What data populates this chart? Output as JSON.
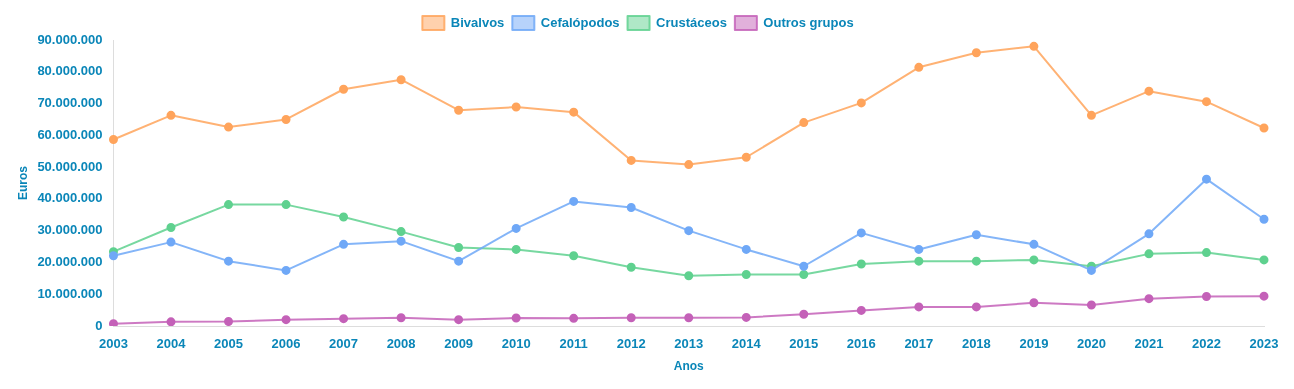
{
  "chart_data": {
    "type": "line",
    "xlabel": "Anos",
    "ylabel": "Euros",
    "categories": [
      "2003",
      "2004",
      "2005",
      "2006",
      "2007",
      "2008",
      "2009",
      "2010",
      "2011",
      "2012",
      "2013",
      "2014",
      "2015",
      "2016",
      "2017",
      "2018",
      "2019",
      "2020",
      "2021",
      "2022",
      "2023"
    ],
    "series": [
      {
        "name": "Bivalvos",
        "color": "#ffa45c",
        "values": [
          58700000,
          66300000,
          62600000,
          65000000,
          74500000,
          77500000,
          67900000,
          68900000,
          67300000,
          52100000,
          50800000,
          53100000,
          64000000,
          70200000,
          81400000,
          86000000,
          88000000,
          66300000,
          73900000,
          70600000,
          62300000
        ]
      },
      {
        "name": "Cefalópodos",
        "color": "#6fa8f7",
        "values": [
          22100000,
          26400000,
          20400000,
          17500000,
          25700000,
          26700000,
          20400000,
          30700000,
          39200000,
          37300000,
          30000000,
          24100000,
          18800000,
          29300000,
          24100000,
          28700000,
          25700000,
          17500000,
          29000000,
          46200000,
          33600000
        ]
      },
      {
        "name": "Crustáceos",
        "color": "#5fd18f",
        "values": [
          23400000,
          31000000,
          38200000,
          38200000,
          34300000,
          29700000,
          24700000,
          24100000,
          22100000,
          18500000,
          15800000,
          16200000,
          16200000,
          19500000,
          20400000,
          20400000,
          20800000,
          18800000,
          22700000,
          23100000,
          20800000
        ]
      },
      {
        "name": "Outros grupos",
        "color": "#c461b8",
        "values": [
          700000,
          1300000,
          1400000,
          2000000,
          2300000,
          2600000,
          2000000,
          2500000,
          2400000,
          2600000,
          2600000,
          2700000,
          3700000,
          4900000,
          6000000,
          6000000,
          7300000,
          6600000,
          8600000,
          9300000,
          9400000
        ]
      }
    ],
    "ylim": [
      0,
      90000000
    ],
    "yticks": [
      {
        "value": 0,
        "label": "0"
      },
      {
        "value": 10000000,
        "label": "10.000.000"
      },
      {
        "value": 20000000,
        "label": "20.000.000"
      },
      {
        "value": 30000000,
        "label": "30.000.000"
      },
      {
        "value": 40000000,
        "label": "40.000.000"
      },
      {
        "value": 50000000,
        "label": "50.000.000"
      },
      {
        "value": 60000000,
        "label": "60.000.000"
      },
      {
        "value": 70000000,
        "label": "70.000.000"
      },
      {
        "value": 80000000,
        "label": "80.000.000"
      },
      {
        "value": 90000000,
        "label": "90.000.000"
      }
    ],
    "grid": false,
    "legend": "top",
    "marker": "circle",
    "line_style": "solid"
  }
}
